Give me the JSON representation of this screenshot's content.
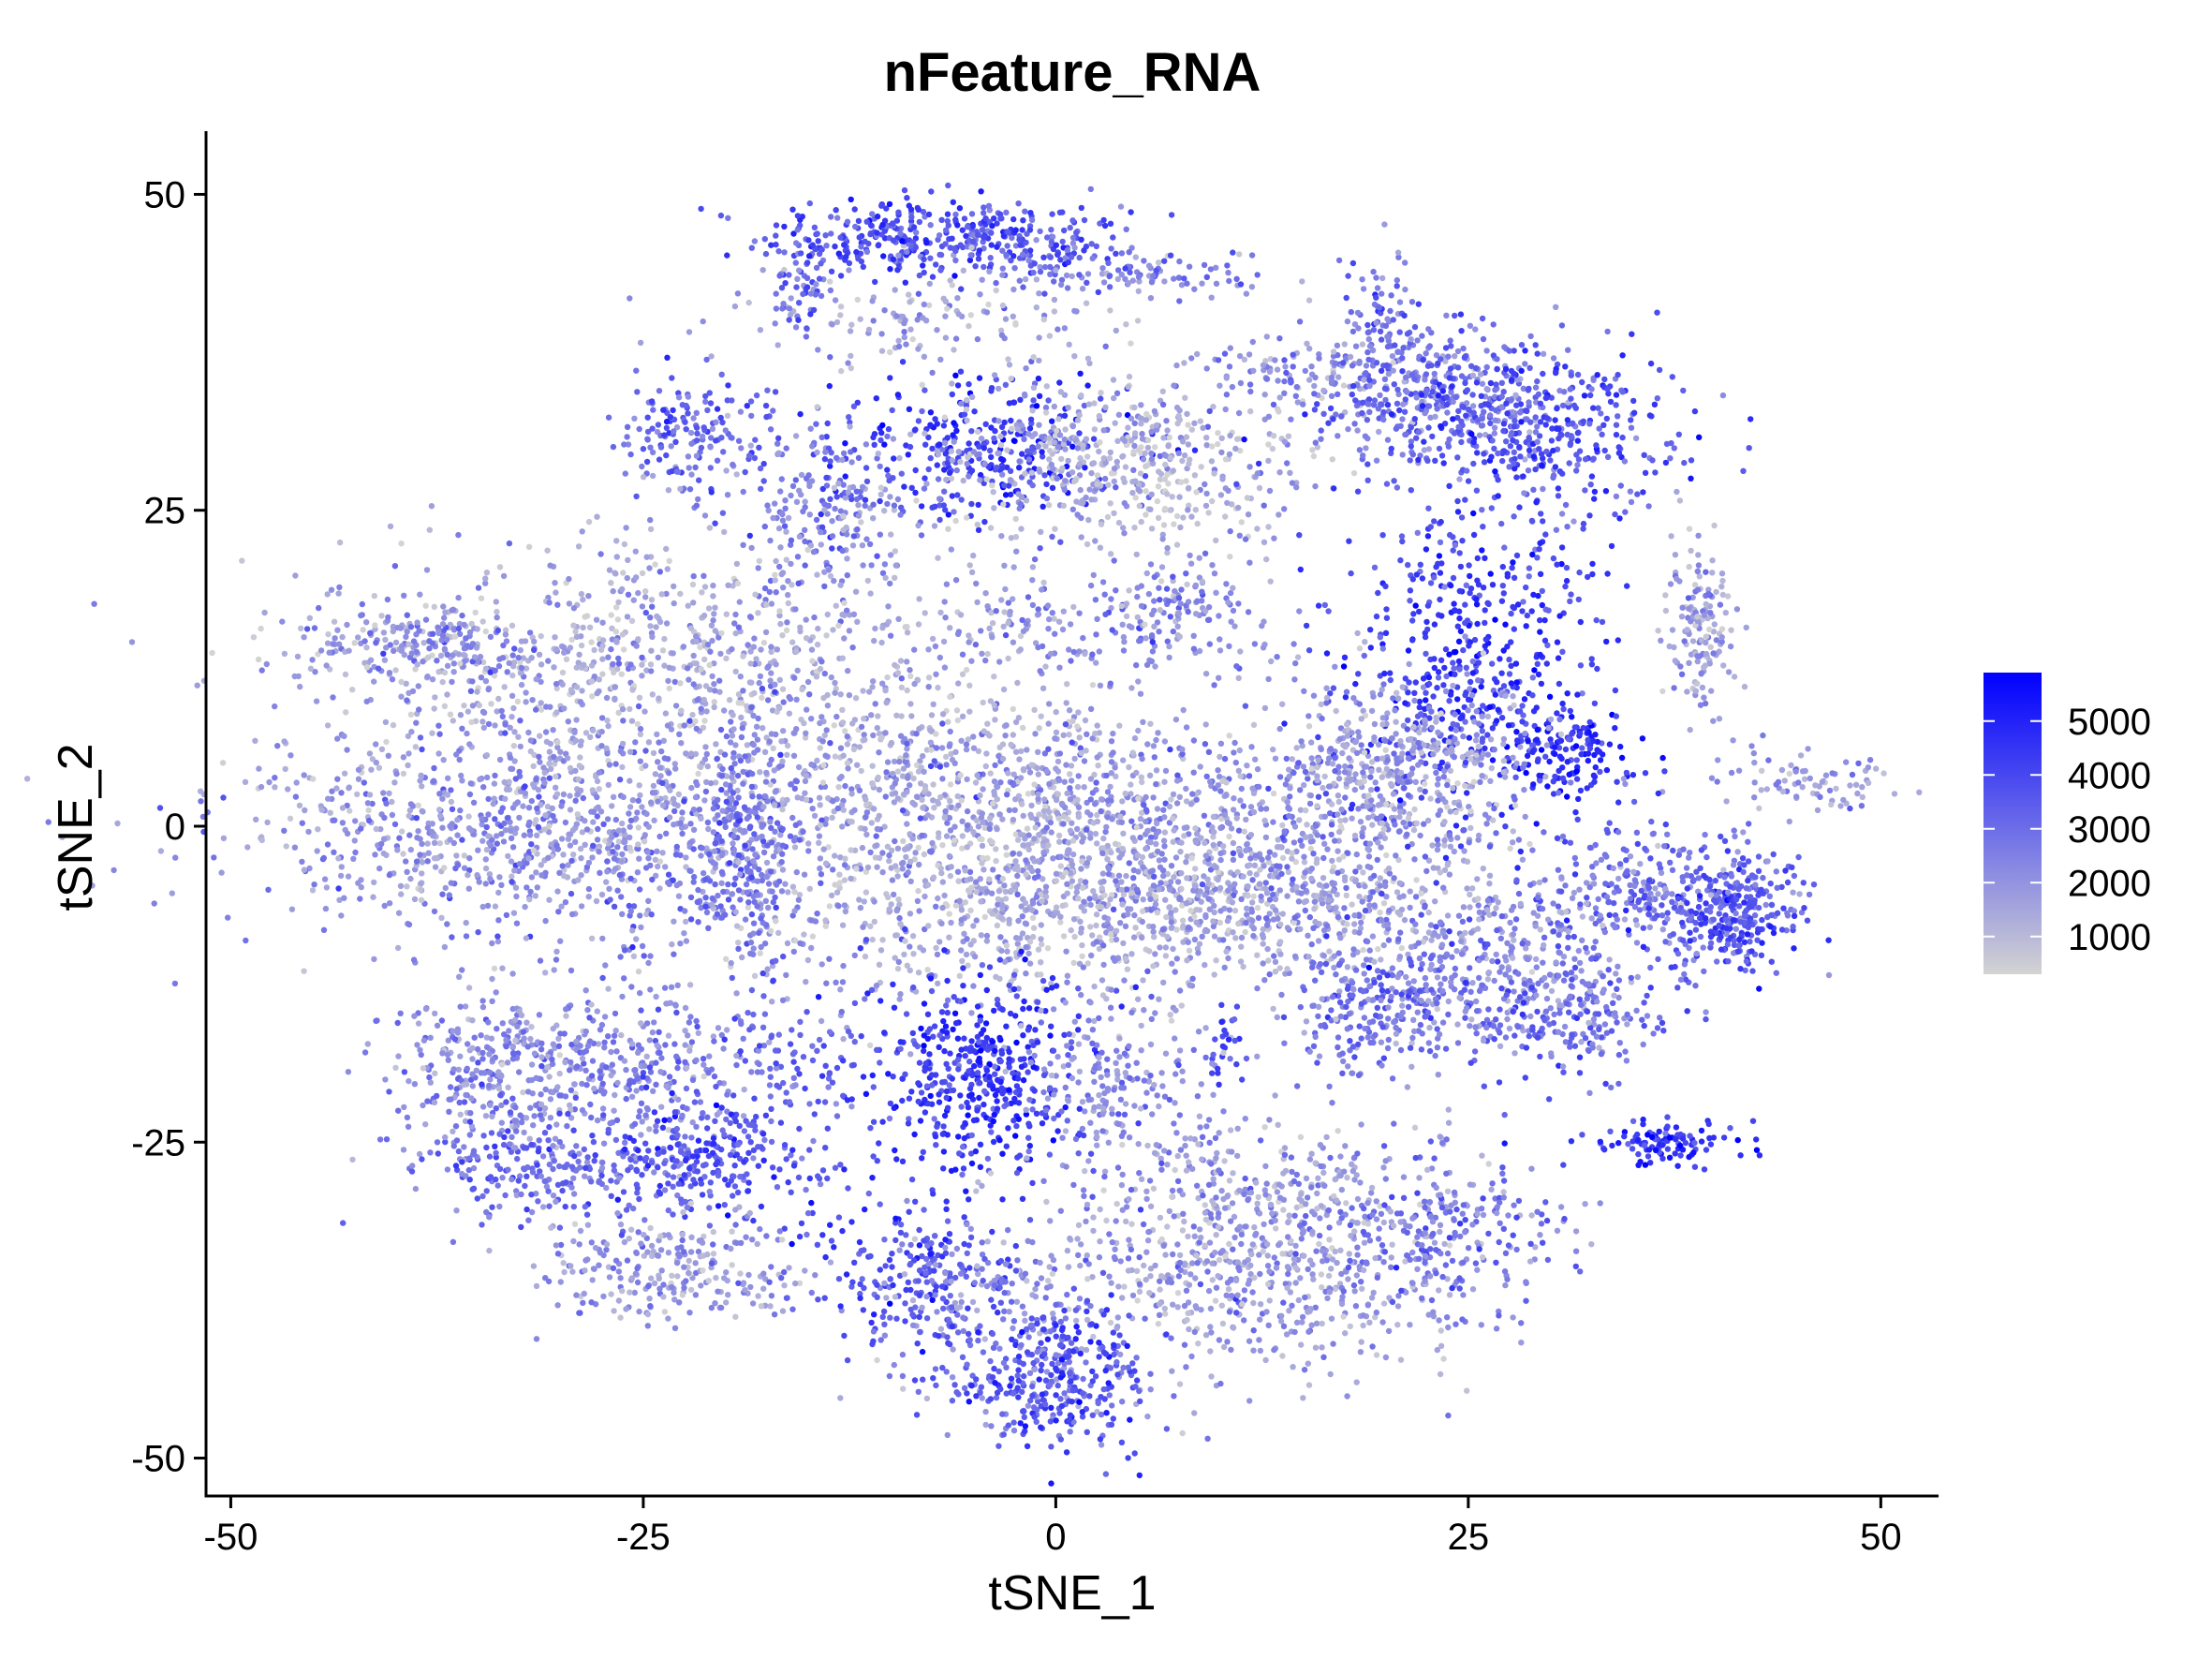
{
  "chart_data": {
    "type": "scatter",
    "title": "nFeature_RNA",
    "xlabel": "tSNE_1",
    "ylabel": "tSNE_2",
    "xlim": [
      -51.5,
      53.5
    ],
    "ylim": [
      -53,
      55
    ],
    "x_ticks": [
      -50,
      -25,
      0,
      25,
      50
    ],
    "x_tick_labels": [
      "-50",
      "-25",
      "0",
      "25",
      "50"
    ],
    "y_ticks": [
      50,
      25,
      0,
      -25,
      -50
    ],
    "y_tick_labels": [
      "50",
      "25",
      "0",
      "-25",
      "-50"
    ],
    "grid": false,
    "legend": {
      "position": "right",
      "type": "colorbar",
      "range": [
        300,
        5900
      ],
      "ticks": [
        1000,
        2000,
        3000,
        4000,
        5000
      ],
      "tick_labels": [
        "1000",
        "2000",
        "3000",
        "4000",
        "5000"
      ],
      "low_color": "#d3d3d3",
      "high_color": "#0000ff"
    },
    "clusters": [
      {
        "x": -10,
        "y": 46.5,
        "sx": 4,
        "sy": 1.6,
        "n": 260,
        "mean": 3800
      },
      {
        "x": -2,
        "y": 46.5,
        "sx": 3,
        "sy": 1.4,
        "n": 160,
        "mean": 3500
      },
      {
        "x": 4,
        "y": 43.5,
        "sx": 5,
        "sy": 1.2,
        "n": 120,
        "mean": 2500
      },
      {
        "x": -8,
        "y": 40,
        "sx": 7,
        "sy": 1.8,
        "n": 130,
        "mean": 1500
      },
      {
        "x": -15,
        "y": 42,
        "sx": 1.2,
        "sy": 2,
        "n": 50,
        "mean": 3200
      },
      {
        "x": -4.5,
        "y": 30,
        "sx": 4.5,
        "sy": 3,
        "n": 320,
        "mean": 4300
      },
      {
        "x": 4,
        "y": 29,
        "sx": 6,
        "sy": 3.2,
        "n": 520,
        "mean": 1300
      },
      {
        "x": 20,
        "y": 40,
        "sx": 1.3,
        "sy": 3,
        "n": 70,
        "mean": 2800
      },
      {
        "x": 16,
        "y": 36,
        "sx": 4,
        "sy": 1.3,
        "n": 120,
        "mean": 2000
      },
      {
        "x": 23,
        "y": 34,
        "sx": 4,
        "sy": 2.5,
        "n": 320,
        "mean": 2700
      },
      {
        "x": 29,
        "y": 31.5,
        "sx": 5,
        "sy": 3,
        "n": 420,
        "mean": 3600
      },
      {
        "x": -22,
        "y": 31,
        "sx": 2.5,
        "sy": 2.5,
        "n": 170,
        "mean": 3000
      },
      {
        "x": -14,
        "y": 25,
        "sx": 2.5,
        "sy": 3.5,
        "n": 180,
        "mean": 2500
      },
      {
        "x": -24,
        "y": 13,
        "sx": 10,
        "sy": 5,
        "n": 900,
        "mean": 1500
      },
      {
        "x": -7,
        "y": 4,
        "sx": 7,
        "sy": 4,
        "n": 550,
        "mean": 1600
      },
      {
        "x": 9,
        "y": 3,
        "sx": 8,
        "sy": 2.5,
        "n": 300,
        "mean": 2100
      },
      {
        "x": 2,
        "y": -5,
        "sx": 11,
        "sy": 4,
        "n": 1300,
        "mean": 1500
      },
      {
        "x": 15,
        "y": -5,
        "sx": 6,
        "sy": 2.5,
        "n": 300,
        "mean": 1800
      },
      {
        "x": 7,
        "y": 17,
        "sx": 3,
        "sy": 2.5,
        "n": 180,
        "mean": 2300
      },
      {
        "x": -2,
        "y": 16,
        "sx": 3,
        "sy": 1.5,
        "n": 80,
        "mean": 1900
      },
      {
        "x": -41,
        "y": 14.5,
        "sx": 3.5,
        "sy": 1.5,
        "n": 100,
        "mean": 2100
      },
      {
        "x": -36,
        "y": 14.5,
        "sx": 2.5,
        "sy": 1.5,
        "n": 80,
        "mean": 2200
      },
      {
        "x": -33,
        "y": 0,
        "sx": 8,
        "sy": 4.5,
        "n": 900,
        "mean": 2000
      },
      {
        "x": -20,
        "y": -2,
        "sx": 3,
        "sy": 3.5,
        "n": 220,
        "mean": 2600
      },
      {
        "x": -18.5,
        "y": -1,
        "sx": 1.3,
        "sy": 4.5,
        "n": 140,
        "mean": 2800
      },
      {
        "x": 25,
        "y": 13,
        "sx": 4,
        "sy": 7,
        "n": 500,
        "mean": 4200
      },
      {
        "x": 31,
        "y": 5.5,
        "sx": 2,
        "sy": 2,
        "n": 140,
        "mean": 4700
      },
      {
        "x": 21,
        "y": 5,
        "sx": 4,
        "sy": 4,
        "n": 450,
        "mean": 1800
      },
      {
        "x": 39,
        "y": 16,
        "sx": 1,
        "sy": 3.5,
        "n": 150,
        "mean": 1700
      },
      {
        "x": 45.5,
        "y": 4,
        "sx": 3,
        "sy": 1.3,
        "n": 80,
        "mean": 1900
      },
      {
        "x": 37,
        "y": -5,
        "sx": 4,
        "sy": 2.5,
        "n": 300,
        "mean": 2800
      },
      {
        "x": 41,
        "y": -7.5,
        "sx": 2,
        "sy": 2,
        "n": 220,
        "mean": 3700
      },
      {
        "x": 26,
        "y": -11,
        "sx": 5,
        "sy": 3,
        "n": 350,
        "mean": 2200
      },
      {
        "x": 20,
        "y": -14.5,
        "sx": 3,
        "sy": 2.5,
        "n": 200,
        "mean": 2900
      },
      {
        "x": 31,
        "y": -15,
        "sx": 3,
        "sy": 2.5,
        "n": 200,
        "mean": 3000
      },
      {
        "x": -34,
        "y": -19,
        "sx": 3.5,
        "sy": 3,
        "n": 300,
        "mean": 2200
      },
      {
        "x": -26,
        "y": -19,
        "sx": 4,
        "sy": 3,
        "n": 300,
        "mean": 2400
      },
      {
        "x": -31,
        "y": -27,
        "sx": 4.5,
        "sy": 2,
        "n": 250,
        "mean": 3000
      },
      {
        "x": -21,
        "y": -26.5,
        "sx": 3.5,
        "sy": 2.5,
        "n": 250,
        "mean": 3600
      },
      {
        "x": -23,
        "y": -35,
        "sx": 4,
        "sy": 2.2,
        "n": 250,
        "mean": 1800
      },
      {
        "x": -16,
        "y": -19,
        "sx": 2.5,
        "sy": 3,
        "n": 100,
        "mean": 3200
      },
      {
        "x": -5,
        "y": -20,
        "sx": 3,
        "sy": 4,
        "n": 450,
        "mean": 4300
      },
      {
        "x": 3,
        "y": -20,
        "sx": 2.5,
        "sy": 4,
        "n": 200,
        "mean": 2200
      },
      {
        "x": 10,
        "y": -18,
        "sx": 0.8,
        "sy": 1.5,
        "n": 30,
        "mean": 3800
      },
      {
        "x": 12,
        "y": -33,
        "sx": 7,
        "sy": 5,
        "n": 900,
        "mean": 1800
      },
      {
        "x": 24,
        "y": -32,
        "sx": 3.5,
        "sy": 3.5,
        "n": 200,
        "mean": 2800
      },
      {
        "x": 37,
        "y": -25,
        "sx": 2,
        "sy": 1,
        "n": 110,
        "mean": 4500
      },
      {
        "x": -9,
        "y": -35,
        "sx": 3,
        "sy": 3,
        "n": 200,
        "mean": 3700
      },
      {
        "x": -4,
        "y": -37,
        "sx": 3,
        "sy": 2.5,
        "n": 120,
        "mean": 2200
      },
      {
        "x": -2,
        "y": -44,
        "sx": 3.5,
        "sy": 2.5,
        "n": 220,
        "mean": 3100
      },
      {
        "x": 1.5,
        "y": -43,
        "sx": 2,
        "sy": 3,
        "n": 150,
        "mean": 4000
      }
    ]
  }
}
